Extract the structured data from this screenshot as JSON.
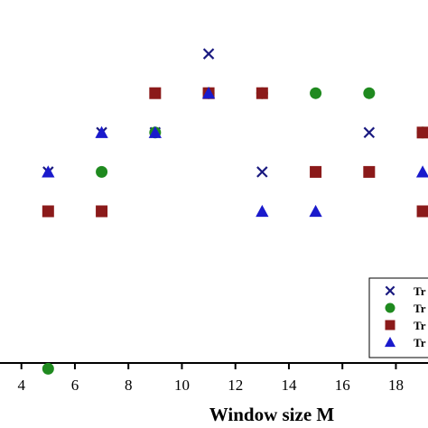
{
  "chart_data": {
    "type": "scatter",
    "xlabel": "Window size M",
    "ylabel": "",
    "xlim": [
      3.2,
      19.2
    ],
    "ylim": [
      0,
      10
    ],
    "x_ticks": [
      4,
      6,
      8,
      10,
      12,
      14,
      16,
      18
    ],
    "legend_position": "bottom-right",
    "series": [
      {
        "name": "Tr",
        "marker": "x",
        "color": "#1a1a80",
        "points": [
          {
            "x": 5,
            "y": 6
          },
          {
            "x": 7,
            "y": 7
          },
          {
            "x": 9,
            "y": 7
          },
          {
            "x": 11,
            "y": 9
          },
          {
            "x": 13,
            "y": 6
          },
          {
            "x": 17,
            "y": 7
          },
          {
            "x": 17,
            "y": 6
          }
        ]
      },
      {
        "name": "Tr",
        "marker": "circle",
        "color": "#1f8a1f",
        "points": [
          {
            "x": 5,
            "y": 1
          },
          {
            "x": 7,
            "y": 6
          },
          {
            "x": 9,
            "y": 7
          },
          {
            "x": 11,
            "y": 8
          },
          {
            "x": 13,
            "y": 8
          },
          {
            "x": 15,
            "y": 8
          },
          {
            "x": 17,
            "y": 8
          },
          {
            "x": 19,
            "y": 7
          }
        ]
      },
      {
        "name": "Tr",
        "marker": "square",
        "color": "#8b1a1a",
        "points": [
          {
            "x": 5,
            "y": 5
          },
          {
            "x": 7,
            "y": 5
          },
          {
            "x": 9,
            "y": 8
          },
          {
            "x": 11,
            "y": 8
          },
          {
            "x": 13,
            "y": 8
          },
          {
            "x": 15,
            "y": 6
          },
          {
            "x": 17,
            "y": 6
          },
          {
            "x": 19,
            "y": 7
          },
          {
            "x": 19,
            "y": 5
          }
        ]
      },
      {
        "name": "Tr",
        "marker": "triangle",
        "color": "#1a1acc",
        "points": [
          {
            "x": 5,
            "y": 6
          },
          {
            "x": 7,
            "y": 7
          },
          {
            "x": 9,
            "y": 7
          },
          {
            "x": 11,
            "y": 8
          },
          {
            "x": 13,
            "y": 5
          },
          {
            "x": 15,
            "y": 5
          },
          {
            "x": 19,
            "y": 6
          }
        ]
      }
    ]
  }
}
